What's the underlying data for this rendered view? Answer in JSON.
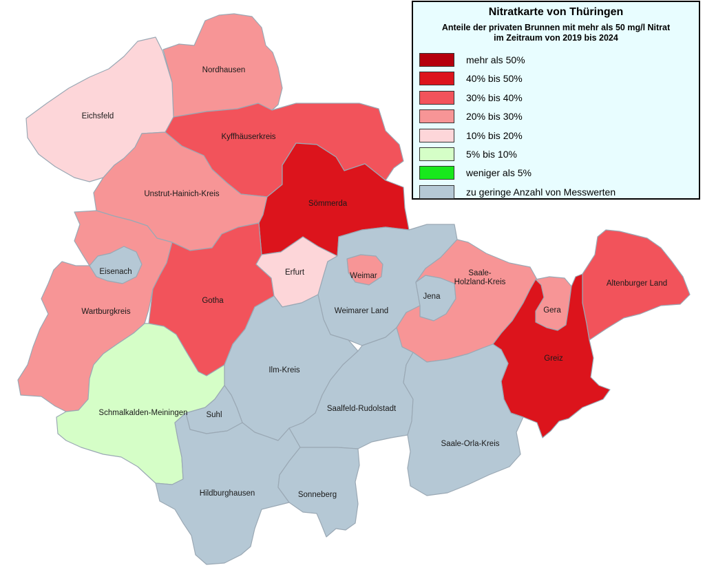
{
  "legend": {
    "title": "Nitratkarte von Thüringen",
    "subtitle": "Anteile der privaten Brunnen mit mehr als 50 mg/l Nitrat\nim Zeitraum von 2019 bis 2024",
    "items": [
      {
        "label": "mehr als 50%",
        "color": "#b5000d"
      },
      {
        "label": "40% bis 50%",
        "color": "#dc141c"
      },
      {
        "label": "30% bis 40%",
        "color": "#f2535b"
      },
      {
        "label": "20% bis 30%",
        "color": "#f79596"
      },
      {
        "label": "10% bis 20%",
        "color": "#fdd6d9"
      },
      {
        "label": "5% bis 10%",
        "color": "#d5fec7"
      },
      {
        "label": " weniger als 5%",
        "color": "#18e81c"
      },
      {
        "label": "zu geringe Anzahl von Messwerten",
        "color": "#b5c8d5"
      }
    ]
  },
  "districts": [
    {
      "id": "nordhausen",
      "label": "Nordhausen",
      "color": "#f79596"
    },
    {
      "id": "eichsfeld",
      "label": "Eichsfeld",
      "color": "#fdd6d9"
    },
    {
      "id": "kyffhaeuserkreis",
      "label": "Kyffhäuserkreis",
      "color": "#f2535b"
    },
    {
      "id": "unstrut-hainich-kreis",
      "label": "Unstrut-Hainich-Kreis",
      "color": "#f79596"
    },
    {
      "id": "soemmerda",
      "label": "Sömmerda",
      "color": "#dc141c"
    },
    {
      "id": "eisenach",
      "label": "Eisenach",
      "color": "#b5c8d5"
    },
    {
      "id": "wartburgkreis",
      "label": "Wartburgkreis",
      "color": "#f79596"
    },
    {
      "id": "gotha",
      "label": "Gotha",
      "color": "#f2535b"
    },
    {
      "id": "erfurt",
      "label": "Erfurt",
      "color": "#fdd6d9"
    },
    {
      "id": "weimar",
      "label": "Weimar",
      "color": "#f79596"
    },
    {
      "id": "weimarer-land",
      "label": "Weimarer Land",
      "color": "#b5c8d5"
    },
    {
      "id": "jena",
      "label": "Jena",
      "color": "#b5c8d5"
    },
    {
      "id": "saale-holzland-kreis",
      "label": "Saale-\nHolzland-Kreis",
      "color": "#f79596"
    },
    {
      "id": "gera",
      "label": "Gera",
      "color": "#f79596"
    },
    {
      "id": "altenburger-land",
      "label": "Altenburger Land",
      "color": "#f2535b"
    },
    {
      "id": "greiz",
      "label": "Greiz",
      "color": "#dc141c"
    },
    {
      "id": "ilm-kreis",
      "label": "Ilm-Kreis",
      "color": "#b5c8d5"
    },
    {
      "id": "schmalkalden-meiningen",
      "label": "Schmalkalden-Meiningen",
      "color": "#d5fec7"
    },
    {
      "id": "suhl",
      "label": "Suhl",
      "color": "#b5c8d5"
    },
    {
      "id": "saalfeld-rudolstadt",
      "label": "Saalfeld-Rudolstadt",
      "color": "#b5c8d5"
    },
    {
      "id": "saale-orla-kreis",
      "label": "Saale-Orla-Kreis",
      "color": "#b5c8d5"
    },
    {
      "id": "hildburghausen",
      "label": "Hildburghausen",
      "color": "#b5c8d5"
    },
    {
      "id": "sonneberg",
      "label": "Sonneberg",
      "color": "#b5c8d5"
    }
  ]
}
